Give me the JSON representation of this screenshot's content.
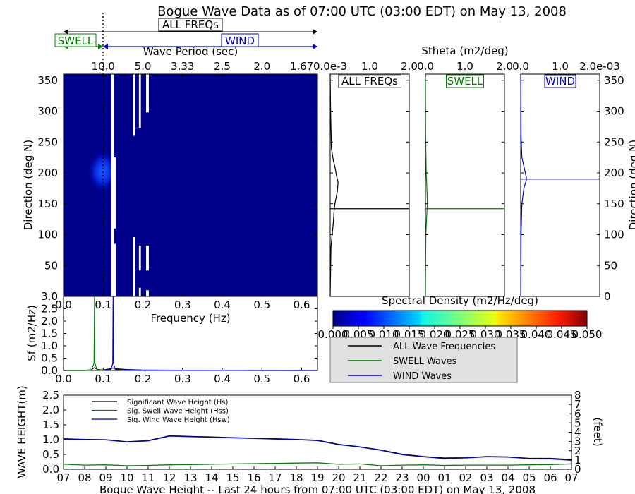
{
  "chart_data": [
    {
      "id": "spectrum_2d",
      "type": "heatmap",
      "title": "Bogue Wave Data as of 07:00 UTC (03:00 EDT) on May 13, 2008",
      "xlabel": "Frequency (Hz)",
      "ylabel": "Direction (deg N)",
      "top_axis_label": "Wave Period (sec)",
      "xlim": [
        0.0,
        0.64
      ],
      "ylim": [
        0,
        360
      ],
      "xticks": [
        0.0,
        0.1,
        0.2,
        0.3,
        0.4,
        0.5,
        0.6
      ],
      "yticks": [
        0,
        50,
        100,
        150,
        200,
        250,
        300,
        350
      ],
      "top_ticks": [
        {
          "freq": 0.1,
          "label": "10.0"
        },
        {
          "freq": 0.2,
          "label": "5.0"
        },
        {
          "freq": 0.3,
          "label": "3.33"
        },
        {
          "freq": 0.4,
          "label": "2.5"
        },
        {
          "freq": 0.5,
          "label": "2.0"
        },
        {
          "freq": 0.6,
          "label": "1.67"
        }
      ],
      "separation_frequency": 0.1,
      "band_labels": {
        "all": "ALL FREQs",
        "swell": "SWELL",
        "wind": "WIND"
      },
      "colorbar": {
        "label": "Spectral Density (m2/Hz/deg)",
        "range": [
          0.0,
          0.05
        ],
        "ticks": [
          "0.000",
          "0.005",
          "0.010",
          "0.015",
          "0.020",
          "0.025",
          "0.030",
          "0.035",
          "0.040",
          "0.045",
          "0.050"
        ]
      },
      "white_gaps": [
        {
          "f0": 0.12,
          "f1": 0.127,
          "d0": 0,
          "d1": 360
        },
        {
          "f0": 0.127,
          "f1": 0.132,
          "d0": 110,
          "d1": 225
        },
        {
          "f0": 0.12,
          "f1": 0.132,
          "d0": 0,
          "d1": 85
        },
        {
          "f0": 0.175,
          "f1": 0.18,
          "d0": 260,
          "d1": 360
        },
        {
          "f0": 0.175,
          "f1": 0.18,
          "d0": 0,
          "d1": 96
        },
        {
          "f0": 0.19,
          "f1": 0.195,
          "d0": 273,
          "d1": 360
        },
        {
          "f0": 0.19,
          "f1": 0.195,
          "d0": 42,
          "d1": 82
        },
        {
          "f0": 0.19,
          "f1": 0.195,
          "d0": 0,
          "d1": 14
        },
        {
          "f0": 0.208,
          "f1": 0.215,
          "d0": 298,
          "d1": 360
        },
        {
          "f0": 0.208,
          "f1": 0.215,
          "d0": 42,
          "d1": 82
        },
        {
          "f0": 0.208,
          "f1": 0.215,
          "d0": 0,
          "d1": 10
        }
      ],
      "hot_spot": {
        "freq": 0.1,
        "dir": 190
      }
    },
    {
      "id": "stheta_panels",
      "type": "line",
      "label": "Stheta (m2/deg)",
      "ylim": [
        0,
        360
      ],
      "panels": [
        {
          "name": "ALL FREQs",
          "color": "#000000",
          "ticks": [
            "0.0e-3",
            "1.0",
            "2.0"
          ],
          "xmax": 2.0,
          "peak_dir": 142,
          "profile": [
            [
              0,
              0.0
            ],
            [
              80,
              0.02
            ],
            [
              100,
              0.05
            ],
            [
              120,
              0.08
            ],
            [
              140,
              0.1
            ],
            [
              150,
              0.12
            ],
            [
              170,
              0.18
            ],
            [
              185,
              0.2
            ],
            [
              195,
              0.16
            ],
            [
              210,
              0.12
            ],
            [
              220,
              0.08
            ],
            [
              240,
              0.03
            ],
            [
              300,
              0.01
            ],
            [
              360,
              0.0
            ]
          ]
        },
        {
          "name": "SWELL",
          "color": "#008000",
          "ticks": [
            "0.0",
            "1.0",
            "2.0"
          ],
          "xmax": 2.0,
          "peak_dir": 142,
          "profile": [
            [
              0,
              0.0
            ],
            [
              100,
              0.01
            ],
            [
              130,
              0.03
            ],
            [
              150,
              0.05
            ],
            [
              170,
              0.04
            ],
            [
              200,
              0.02
            ],
            [
              260,
              0.005
            ],
            [
              360,
              0.0
            ]
          ]
        },
        {
          "name": "WIND",
          "color": "#0000cc",
          "ticks": [
            "0.0",
            "1.0",
            "2.0e-03"
          ],
          "xmax": 2.0,
          "peak_dir": 190,
          "profile": [
            [
              0,
              0.0
            ],
            [
              100,
              0.01
            ],
            [
              150,
              0.03
            ],
            [
              175,
              0.08
            ],
            [
              190,
              0.15
            ],
            [
              205,
              0.1
            ],
            [
              225,
              0.03
            ],
            [
              260,
              0.01
            ],
            [
              360,
              0.0
            ]
          ]
        }
      ]
    },
    {
      "id": "spectrum_1d",
      "type": "line",
      "xlabel": "",
      "ylabel": "Sf (m2/Hz)",
      "xlim": [
        0.0,
        0.64
      ],
      "ylim": [
        0,
        3.0
      ],
      "yticks": [
        "0.0",
        "0.5",
        "1.0",
        "1.5",
        "2.0",
        "2.5",
        "3.0"
      ],
      "series": [
        {
          "color": "#000000",
          "points": [
            [
              0.0,
              0.0
            ],
            [
              0.05,
              0.0
            ],
            [
              0.07,
              0.03
            ],
            [
              0.078,
              0.12
            ],
            [
              0.085,
              0.04
            ],
            [
              0.1,
              0.02
            ],
            [
              0.11,
              0.05
            ],
            [
              0.125,
              0.1
            ],
            [
              0.14,
              0.06
            ],
            [
              0.16,
              0.04
            ],
            [
              0.2,
              0.02
            ],
            [
              0.3,
              0.01
            ],
            [
              0.45,
              0.005
            ],
            [
              0.6,
              0.0
            ]
          ]
        },
        {
          "color": "#008000",
          "points": [
            [
              0.0,
              0.0
            ],
            [
              0.07,
              0.0
            ],
            [
              0.077,
              0.3
            ],
            [
              0.078,
              3.0
            ],
            [
              0.079,
              0.3
            ],
            [
              0.085,
              0.02
            ],
            [
              0.1,
              0.0
            ]
          ]
        },
        {
          "color": "#0000cc",
          "points": [
            [
              0.1,
              0.0
            ],
            [
              0.12,
              0.05
            ],
            [
              0.124,
              0.3
            ],
            [
              0.125,
              3.0
            ],
            [
              0.126,
              0.3
            ],
            [
              0.13,
              0.05
            ],
            [
              0.16,
              0.02
            ],
            [
              0.25,
              0.01
            ],
            [
              0.5,
              0.0
            ],
            [
              0.64,
              0.0
            ]
          ]
        }
      ]
    },
    {
      "id": "wave_height_history",
      "type": "line",
      "title": "Bogue Wave Height -- Last 24 hours from 07:00 UTC (03:00 EDT) on May 13, 2008",
      "ylabel": "WAVE HEIGHT(m)",
      "y2label": "(feet)",
      "ylim": [
        0.0,
        2.5
      ],
      "yticks": [
        "0.0",
        "0.5",
        "1.0",
        "1.5",
        "2.0",
        "2.5"
      ],
      "y2ticks": [
        "0",
        "1",
        "2",
        "3",
        "4",
        "5",
        "6",
        "7",
        "8"
      ],
      "categories": [
        "07",
        "08",
        "09",
        "10",
        "11",
        "12",
        "13",
        "14",
        "15",
        "16",
        "17",
        "18",
        "19",
        "20",
        "21",
        "22",
        "23",
        "00",
        "01",
        "02",
        "03",
        "04",
        "05",
        "06",
        "07"
      ],
      "series": [
        {
          "name": "Significant Wave Height (Hs)",
          "color": "#000000",
          "values": [
            1.03,
            1.01,
            1.0,
            0.93,
            0.97,
            1.13,
            1.11,
            1.09,
            1.07,
            1.05,
            1.03,
            1.01,
            0.98,
            0.84,
            0.76,
            0.65,
            0.51,
            0.43,
            0.38,
            0.39,
            0.43,
            0.42,
            0.37,
            0.37,
            0.33
          ]
        },
        {
          "name": "Sig. Swell Wave Height (Hss)",
          "color": "#008000",
          "values": [
            0.17,
            0.14,
            0.15,
            0.12,
            0.13,
            0.15,
            0.16,
            0.17,
            0.18,
            0.19,
            0.2,
            0.21,
            0.22,
            0.17,
            0.18,
            0.12,
            0.14,
            0.15,
            0.13,
            0.14,
            0.14,
            0.14,
            0.15,
            0.16,
            0.18
          ]
        },
        {
          "name": "Sig. Wind Wave Height (Hsw)",
          "color": "#0000cc",
          "values": [
            1.02,
            1.0,
            0.99,
            0.92,
            0.96,
            1.12,
            1.1,
            1.08,
            1.06,
            1.04,
            1.02,
            1.0,
            0.97,
            0.83,
            0.75,
            0.64,
            0.49,
            0.42,
            0.36,
            0.38,
            0.42,
            0.41,
            0.36,
            0.35,
            0.3
          ]
        }
      ]
    }
  ],
  "legend_items": [
    {
      "label": "ALL Wave Frequencies",
      "color": "#000000"
    },
    {
      "label": "SWELL Waves",
      "color": "#008000"
    },
    {
      "label": "WIND Waves",
      "color": "#0000cc"
    }
  ]
}
